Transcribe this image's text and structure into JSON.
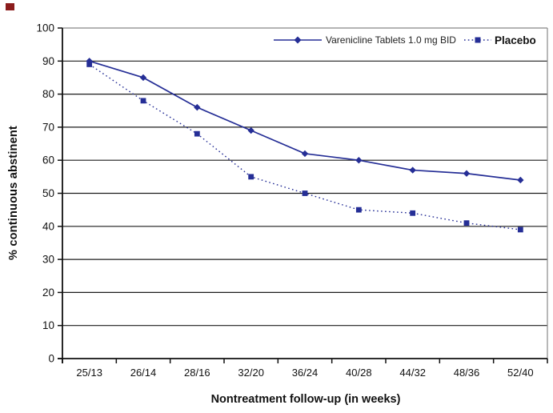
{
  "figure": {
    "corner_mark_color": "#8b1c1c"
  },
  "chart_data": {
    "type": "line",
    "categories": [
      "25/13",
      "26/14",
      "28/16",
      "32/20",
      "36/24",
      "40/28",
      "44/32",
      "48/36",
      "52/40"
    ],
    "series": [
      {
        "name": "Varenicline Tablets 1.0 mg BID",
        "values": [
          90,
          85,
          76,
          69,
          62,
          60,
          57,
          56,
          54
        ],
        "marker": "diamond",
        "line_style": "solid"
      },
      {
        "name": "Placebo",
        "values": [
          89,
          78,
          68,
          55,
          50,
          45,
          44,
          41,
          39
        ],
        "marker": "square",
        "line_style": "dotted"
      }
    ],
    "title": "",
    "xlabel": "Nontreatment follow-up (in weeks)",
    "ylabel": "% continuous abstinent",
    "ylim": [
      0,
      100
    ],
    "ytick_step": 10,
    "grid": "horizontal",
    "legend_position": "top-right-inside",
    "series_color": "#252e96",
    "gridline_color": "#1c1c1c",
    "axis_color": "#111111",
    "border_color": "#888888"
  }
}
